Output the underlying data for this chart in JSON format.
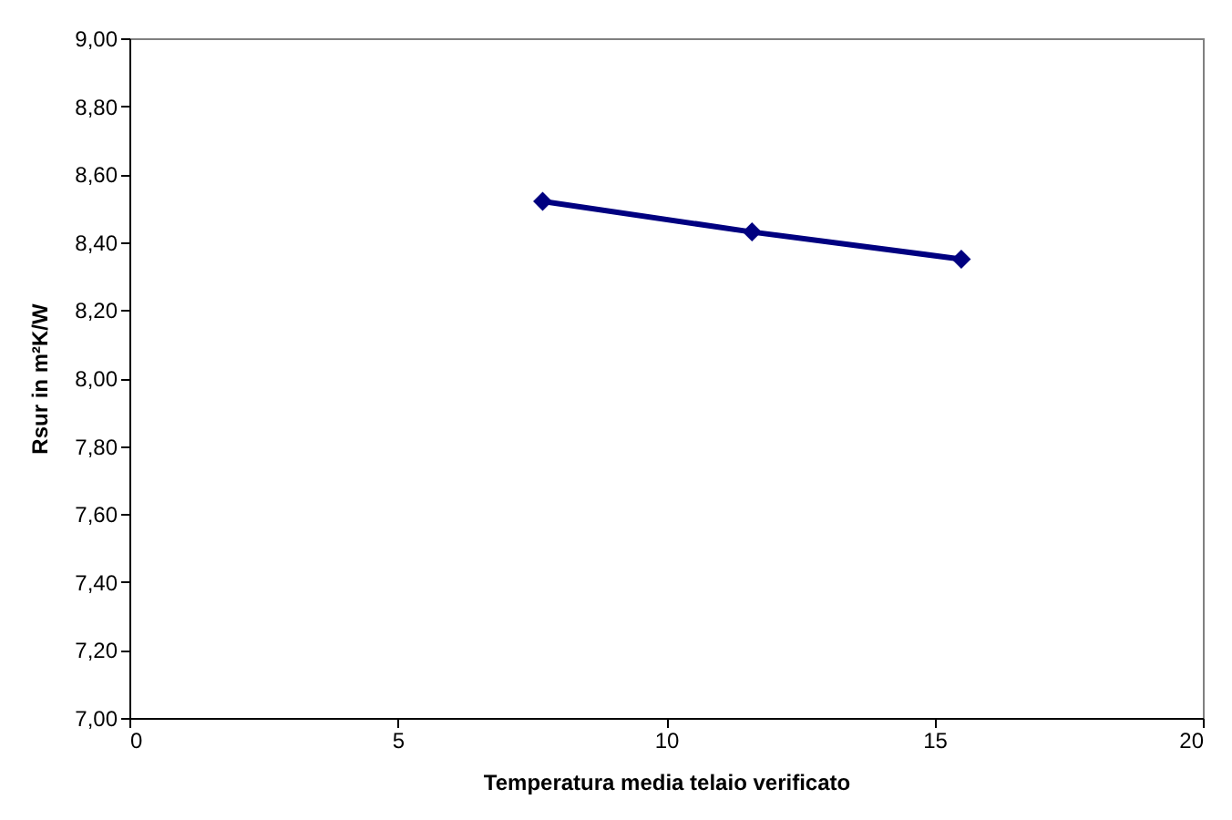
{
  "chart_data": {
    "type": "line",
    "xlabel": "Temperatura media telaio verificato",
    "ylabel": "Rsur in m²K/W",
    "x": [
      7.7,
      11.6,
      15.5
    ],
    "series": [
      {
        "color": "#000080",
        "values": [
          8.52,
          8.43,
          8.35
        ]
      }
    ],
    "xlim": [
      0,
      20
    ],
    "xticks": [
      0,
      5,
      10,
      15,
      20
    ],
    "ylim": [
      7,
      9
    ],
    "yticks": [
      {
        "value": 7,
        "label": "7,00"
      },
      {
        "value": 7.2,
        "label": "7,20"
      },
      {
        "value": 7.4,
        "label": "7,40"
      },
      {
        "value": 7.6,
        "label": "7,60"
      },
      {
        "value": 7.8,
        "label": "7,80"
      },
      {
        "value": 8,
        "label": "8,00"
      },
      {
        "value": 8.2,
        "label": "8,20"
      },
      {
        "value": 8.4,
        "label": "8,40"
      },
      {
        "value": 8.6,
        "label": "8,60"
      },
      {
        "value": 8.8,
        "label": "8,80"
      },
      {
        "value": 9,
        "label": "9,00"
      }
    ],
    "grid": false,
    "marker": "diamond",
    "line_style": "solid"
  }
}
